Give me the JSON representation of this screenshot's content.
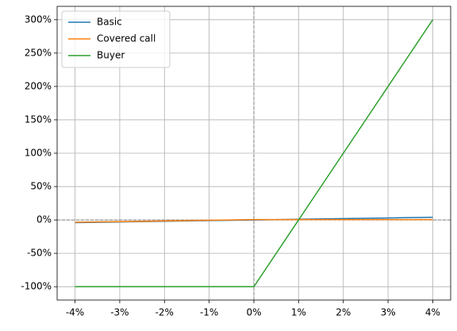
{
  "chart_data": {
    "type": "line",
    "x": [
      -4,
      -3,
      -2,
      -1,
      0,
      1,
      2,
      3,
      4
    ],
    "series": [
      {
        "name": "Basic",
        "color": "#1f77b4",
        "values": [
          -4,
          -3,
          -2,
          -1,
          0,
          1,
          2,
          3,
          4
        ]
      },
      {
        "name": "Covered call",
        "color": "#ff7f0e",
        "values": [
          -3.5,
          -2.5,
          -1.5,
          -0.5,
          0.5,
          0.5,
          0.5,
          0.5,
          0.5
        ]
      },
      {
        "name": "Buyer",
        "color": "#2ca02c",
        "values": [
          -100,
          -100,
          -100,
          -100,
          -100,
          0,
          100,
          200,
          300
        ]
      }
    ],
    "xlim": [
      -4.4,
      4.4
    ],
    "ylim": [
      -120,
      320
    ],
    "xticks": [
      {
        "value": -4,
        "label": "-4%"
      },
      {
        "value": -3,
        "label": "-3%"
      },
      {
        "value": -2,
        "label": "-2%"
      },
      {
        "value": -1,
        "label": "-1%"
      },
      {
        "value": 0,
        "label": "0%"
      },
      {
        "value": 1,
        "label": "1%"
      },
      {
        "value": 2,
        "label": "2%"
      },
      {
        "value": 3,
        "label": "3%"
      },
      {
        "value": 4,
        "label": "4%"
      }
    ],
    "yticks": [
      {
        "value": -100,
        "label": "-100%"
      },
      {
        "value": -50,
        "label": "-50%"
      },
      {
        "value": 0,
        "label": "0%"
      },
      {
        "value": 50,
        "label": "50%"
      },
      {
        "value": 100,
        "label": "100%"
      },
      {
        "value": 150,
        "label": "150%"
      },
      {
        "value": 200,
        "label": "200%"
      },
      {
        "value": 250,
        "label": "250%"
      },
      {
        "value": 300,
        "label": "300%"
      }
    ],
    "grid": true,
    "hline": 0,
    "vline": 0,
    "legend": "upper left"
  }
}
